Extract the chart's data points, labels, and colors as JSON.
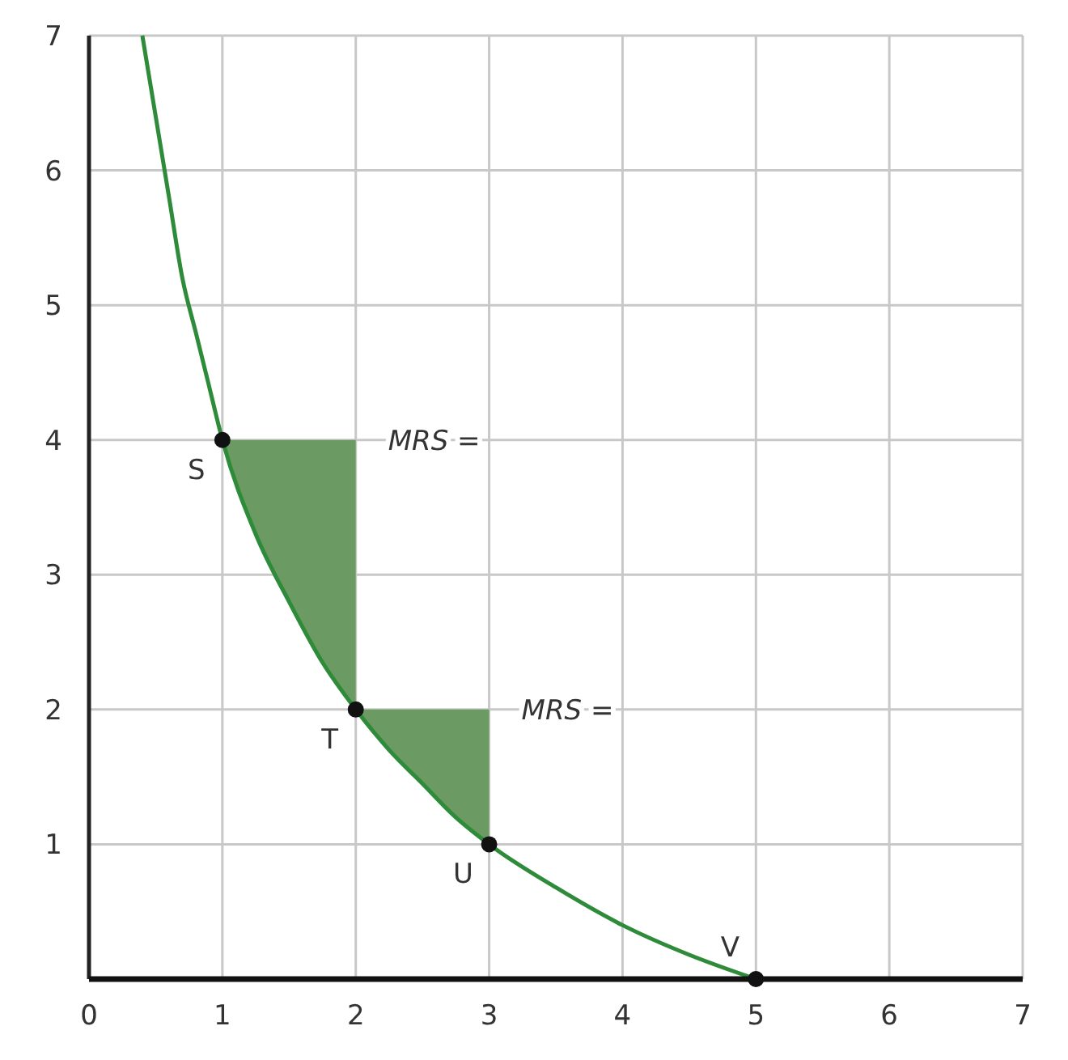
{
  "chart_data": {
    "type": "line",
    "xlim": [
      0,
      7
    ],
    "ylim": [
      0,
      7
    ],
    "xticks": [
      0,
      1,
      2,
      3,
      4,
      5,
      6,
      7
    ],
    "yticks": [
      {
        "value": 0,
        "label": null
      },
      1,
      2,
      3,
      4,
      5,
      6,
      7
    ],
    "grid": true,
    "series": [
      {
        "type": "area",
        "color": "#6b9a63",
        "x": [
          1,
          2
        ],
        "values": [
          4,
          4
        ]
      },
      {
        "type": "area",
        "color": "#6b9a63",
        "x": [
          2,
          3
        ],
        "values": [
          2,
          2
        ]
      },
      {
        "color": "#2e8b3a",
        "line_style": "solid",
        "marker": "none",
        "x": [
          0.4,
          0.5,
          0.6,
          0.7,
          0.8,
          0.9,
          1,
          1.25,
          1.5,
          1.75,
          2,
          2.25,
          2.5,
          2.75,
          3,
          3.5,
          4,
          4.5,
          5
        ],
        "values": [
          7,
          6.4,
          5.8,
          5.2,
          4.8,
          4.4,
          4,
          3.3,
          2.8,
          2.35,
          2,
          1.7,
          1.45,
          1.2,
          1,
          0.68,
          0.4,
          0.18,
          0
        ]
      },
      {
        "type": "scatter",
        "color": "#111111",
        "marker": "circle",
        "x": [
          1,
          2,
          3,
          5
        ],
        "values": [
          4,
          2,
          1,
          0
        ]
      }
    ],
    "annotations": [
      {
        "text": "S",
        "x": 1,
        "y": 4
      },
      {
        "text": "T",
        "x": 2,
        "y": 2
      },
      {
        "text": "U",
        "x": 3,
        "y": 1
      },
      {
        "text": "V",
        "x": 5,
        "y": 0
      },
      "MRS =",
      "MRS ="
    ]
  }
}
